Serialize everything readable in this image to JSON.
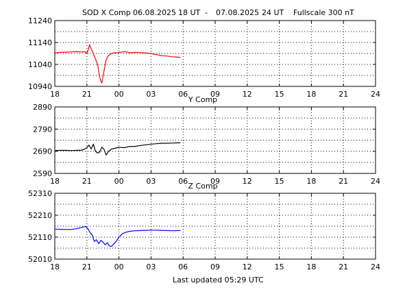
{
  "header": {
    "station": "SOD X Comp",
    "start_date": "06.08.2025",
    "start_time": "18 UT",
    "dash": "-",
    "end_date": "07.08.2025",
    "end_time": "24 UT",
    "fullscale": "Fullscale 300 nT"
  },
  "footer": {
    "last_updated": "Last updated  05:29 UTC"
  },
  "colors": {
    "x_series": "#ff0000",
    "y_series": "#000000",
    "z_series": "#0000ff"
  },
  "chart_data": [
    {
      "type": "line",
      "title": "",
      "xlabel": "",
      "ylabel": "",
      "x_tick_labels": [
        "18",
        "21",
        "00",
        "03",
        "06",
        "09",
        "12",
        "15",
        "18",
        "21",
        "24"
      ],
      "y_tick_labels": [
        "11240",
        "11140",
        "11040",
        "10940"
      ],
      "ylim": [
        10940,
        11240
      ],
      "xlim": [
        18,
        48
      ],
      "grid": true,
      "series": [
        {
          "x": [
            18,
            18.5,
            19,
            19.5,
            20,
            20.5,
            20.8,
            21.0,
            21.1,
            21.25,
            21.4,
            21.6,
            21.8,
            22.0,
            22.2,
            22.4,
            22.6,
            22.8,
            23.0,
            23.3,
            23.6,
            24.0,
            24.3,
            24.6,
            25.0,
            25.5,
            26.0,
            26.5,
            27.0,
            27.5,
            28.0,
            28.5,
            29.0,
            29.5,
            29.75
          ],
          "y": [
            11092,
            11095,
            11096,
            11097,
            11098,
            11097,
            11098,
            11090,
            11103,
            11130,
            11112,
            11090,
            11065,
            11040,
            10980,
            10955,
            11010,
            11060,
            11080,
            11090,
            11093,
            11094,
            11097,
            11098,
            11093,
            11095,
            11094,
            11092,
            11090,
            11085,
            11080,
            11078,
            11075,
            11073,
            11072
          ]
        }
      ]
    },
    {
      "type": "line",
      "title": "Y Comp",
      "xlabel": "",
      "ylabel": "",
      "x_tick_labels": [
        "18",
        "21",
        "00",
        "03",
        "06",
        "09",
        "12",
        "15",
        "18",
        "21",
        "24"
      ],
      "y_tick_labels": [
        "2890",
        "2790",
        "2690",
        "2590"
      ],
      "ylim": [
        2590,
        2890
      ],
      "xlim": [
        18,
        48
      ],
      "grid": true,
      "series": [
        {
          "x": [
            18,
            18.5,
            19,
            19.5,
            20,
            20.5,
            20.8,
            21.0,
            21.2,
            21.4,
            21.6,
            21.8,
            22.0,
            22.2,
            22.4,
            22.6,
            22.8,
            23.0,
            23.3,
            23.6,
            24.0,
            24.5,
            25.0,
            25.5,
            26.0,
            26.5,
            27.0,
            27.5,
            28.0,
            28.5,
            29.0,
            29.5,
            29.75
          ],
          "y": [
            2693,
            2694,
            2694,
            2693,
            2694,
            2695,
            2700,
            2706,
            2718,
            2700,
            2722,
            2690,
            2682,
            2686,
            2708,
            2699,
            2673,
            2688,
            2700,
            2703,
            2708,
            2706,
            2712,
            2712,
            2716,
            2719,
            2722,
            2724,
            2726,
            2726,
            2727,
            2728,
            2728
          ]
        }
      ]
    },
    {
      "type": "line",
      "title": "Z Comp",
      "xlabel": "",
      "ylabel": "",
      "x_tick_labels": [
        "18",
        "21",
        "00",
        "03",
        "06",
        "09",
        "12",
        "15",
        "18",
        "21",
        "24"
      ],
      "y_tick_labels": [
        "52310",
        "52210",
        "52110",
        "52010"
      ],
      "ylim": [
        52010,
        52310
      ],
      "xlim": [
        18,
        48
      ],
      "grid": true,
      "series": [
        {
          "x": [
            18,
            18.5,
            19,
            19.5,
            20,
            20.3,
            20.6,
            20.9,
            21.1,
            21.3,
            21.5,
            21.7,
            21.9,
            22.1,
            22.3,
            22.5,
            22.7,
            22.9,
            23.1,
            23.3,
            23.5,
            23.8,
            24.0,
            24.3,
            24.6,
            25.0,
            25.5,
            26.0,
            26.5,
            27.0,
            27.5,
            28.0,
            28.5,
            29.0,
            29.5,
            29.75
          ],
          "y": [
            52147,
            52146,
            52145,
            52145,
            52148,
            52152,
            52156,
            52158,
            52148,
            52130,
            52120,
            52090,
            52098,
            52080,
            52095,
            52088,
            52075,
            52085,
            52070,
            52068,
            52078,
            52095,
            52110,
            52125,
            52132,
            52137,
            52139,
            52140,
            52141,
            52142,
            52142,
            52141,
            52140,
            52139,
            52140,
            52140
          ]
        }
      ]
    }
  ]
}
